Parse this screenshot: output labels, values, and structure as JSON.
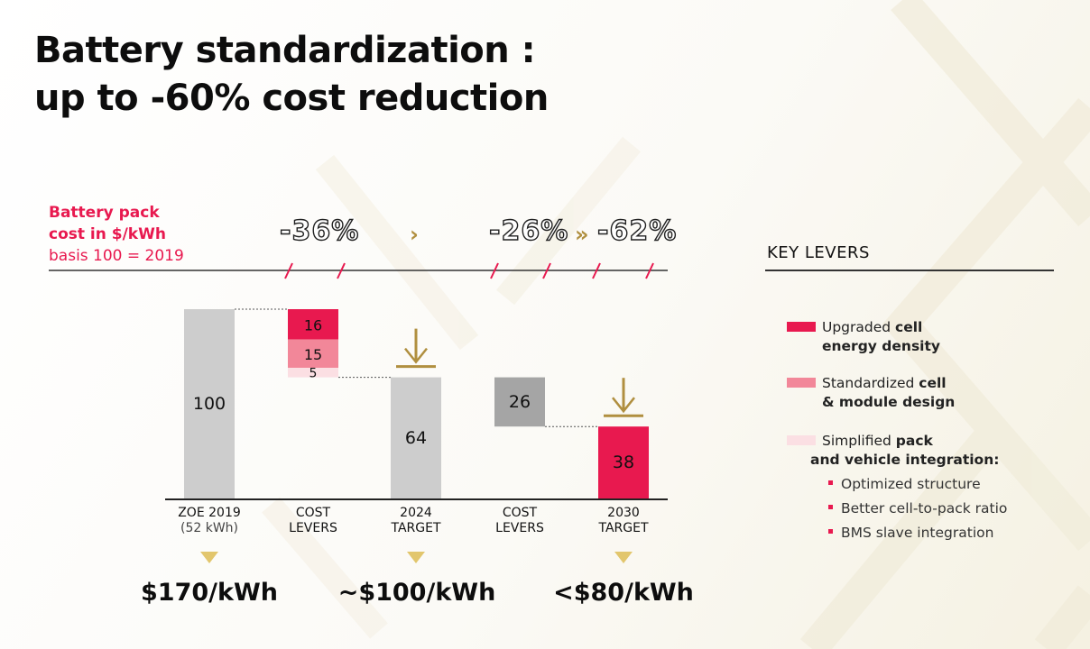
{
  "title": {
    "line1": "Battery standardization :",
    "line2": "up to -60% cost reduction"
  },
  "basis": {
    "line1": "Battery pack",
    "line2": "cost in $/kWh",
    "line3": "basis 100 = 2019"
  },
  "reductions": {
    "first": "-36%",
    "second": "-26%",
    "total": "-62%",
    "chevron_single": "›",
    "chevron_double": "»"
  },
  "key_levers": {
    "title": "KEY LEVERS",
    "items": [
      {
        "bold_before": "",
        "normal": "Upgraded ",
        "bold": "cell",
        "line2_normal": "",
        "line2_bold": "energy density",
        "color": "#e8194f"
      },
      {
        "normal": "Standardized ",
        "bold": "cell",
        "line2_bold": "& module design",
        "color": "#f28799"
      },
      {
        "normal": "Simplified ",
        "bold": "pack",
        "line2_bold": "and vehicle integration:",
        "color": "#fbdfe3"
      }
    ],
    "bullets": [
      "Optimized structure",
      "Better cell-to-pack ratio",
      "BMS slave integration"
    ]
  },
  "prices": [
    "$170/kWh",
    "~$100/kWh",
    "<$80/kWh"
  ],
  "colors": {
    "accent": "#e8194f",
    "gold": "#b08f3f",
    "light_grey": "#cdcdcd",
    "mid_grey": "#a5a5a5",
    "pink": "#f28799",
    "pale_pink": "#fbdfe3"
  },
  "chart_data": {
    "type": "bar",
    "subtype": "waterfall",
    "categories": [
      {
        "line1": "ZOE 2019",
        "line2": "(52 kWh)"
      },
      {
        "line1": "COST",
        "line2": "LEVERS"
      },
      {
        "line1": "2024",
        "line2": "TARGET"
      },
      {
        "line1": "COST",
        "line2": "LEVERS"
      },
      {
        "line1": "2030",
        "line2": "TARGET"
      }
    ],
    "bars": [
      {
        "category": 0,
        "kind": "total",
        "value": 100,
        "color": "#cdcdcd",
        "label": "100"
      },
      {
        "category": 1,
        "kind": "stack",
        "segments": [
          {
            "name": "Upgraded cell energy density",
            "value": 16,
            "color": "#e8194f",
            "label": "16"
          },
          {
            "name": "Standardized cell & module design",
            "value": 15,
            "color": "#f28799",
            "label": "15"
          },
          {
            "name": "Simplified pack and vehicle integration",
            "value": 5,
            "color": "#fbdfe3",
            "label": "5"
          }
        ]
      },
      {
        "category": 2,
        "kind": "total",
        "value": 64,
        "color": "#cdcdcd",
        "label": "64"
      },
      {
        "category": 3,
        "kind": "decrease",
        "value": 26,
        "color": "#a5a5a5",
        "label": "26"
      },
      {
        "category": 4,
        "kind": "total",
        "value": 38,
        "color": "#e8194f",
        "label": "38"
      }
    ],
    "target_markers": [
      2,
      4
    ],
    "ylim": [
      0,
      100
    ]
  }
}
